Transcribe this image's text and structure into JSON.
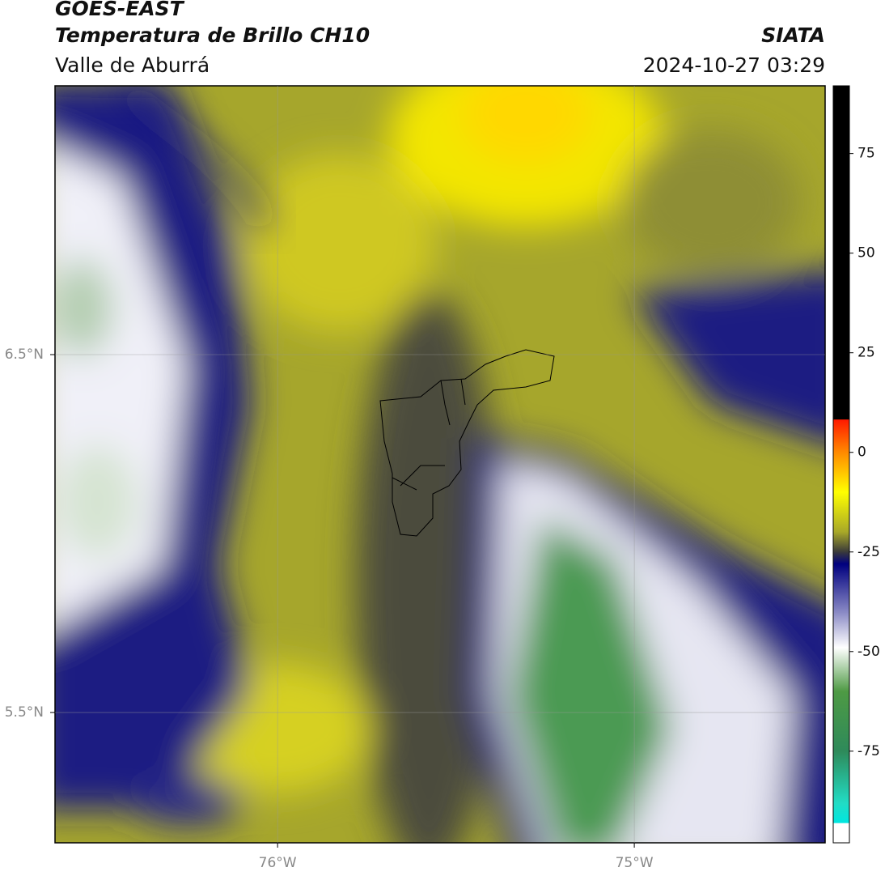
{
  "header": {
    "title": "GOES-EAST",
    "subtitle": "Temperatura de Brillo CH10",
    "region": "Valle de Aburrá",
    "source": "SIATA",
    "timestamp": "2024-10-27 03:29"
  },
  "map": {
    "xlim": [
      -76.624,
      -74.465
    ],
    "ylim": [
      5.136,
      7.251
    ],
    "grid": true,
    "lon_ticks": [
      {
        "value": -76,
        "label": "76°W"
      },
      {
        "value": -75,
        "label": "75°W"
      }
    ],
    "lat_ticks": [
      {
        "value": 6.5,
        "label": "6.5°N"
      },
      {
        "value": 5.5,
        "label": "5.5°N"
      }
    ]
  },
  "colorbar": {
    "lim": [
      -98,
      92
    ],
    "ticks": [
      75,
      50,
      25,
      0,
      -25,
      -50,
      -75
    ],
    "colorscale": [
      {
        "value": 92,
        "color": "#000000"
      },
      {
        "value": 8.3,
        "color": "#000000"
      },
      {
        "value": 8.2,
        "color": "#ff1a00"
      },
      {
        "value": 0,
        "color": "#ff8a00"
      },
      {
        "value": -10,
        "color": "#ffff00"
      },
      {
        "value": -20,
        "color": "#a8a828"
      },
      {
        "value": -25,
        "color": "#3a3a3a"
      },
      {
        "value": -28,
        "color": "#00007f"
      },
      {
        "value": -40,
        "color": "#8888c4"
      },
      {
        "value": -49,
        "color": "#ffffff"
      },
      {
        "value": -60,
        "color": "#4e9a44"
      },
      {
        "value": -75,
        "color": "#2e8a5a"
      },
      {
        "value": -88,
        "color": "#22dcc4"
      },
      {
        "value": -93,
        "color": "#00e6e0"
      },
      {
        "value": -93.1,
        "color": "#ffffff"
      },
      {
        "value": -98,
        "color": "#ffffff"
      }
    ]
  }
}
